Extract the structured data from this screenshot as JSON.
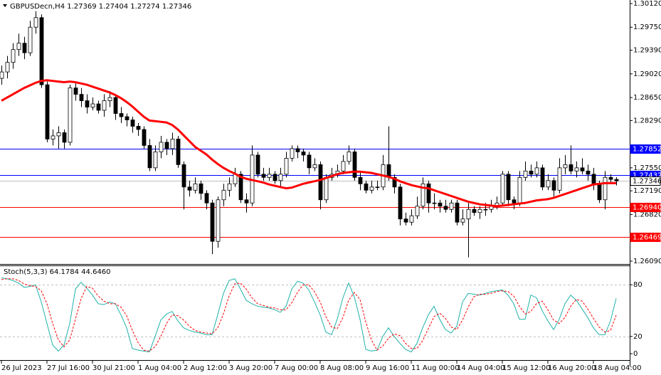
{
  "chart_data": [
    {
      "type": "candlestick",
      "title": "GBPUSDecn,H4  1.27369 1.27404 1.27274 1.27346",
      "categories": [
        "26 Jul 2023",
        null,
        null,
        null,
        null,
        null,
        null,
        null,
        "27 Jul 16:00",
        null,
        null,
        null,
        null,
        null,
        null,
        null,
        "30 Jul 21:00",
        null,
        null,
        null,
        null,
        null,
        null,
        null,
        "1 Aug 04:00",
        null,
        null,
        null,
        null,
        null,
        null,
        null,
        "2 Aug 12:00",
        null,
        null,
        null,
        null,
        null,
        null,
        null,
        "3 Aug 20:00",
        null,
        null,
        null,
        null,
        null,
        null,
        null,
        "7 Aug 00:00",
        null,
        null,
        null,
        null,
        null,
        null,
        null,
        "8 Aug 08:00",
        null,
        null,
        null,
        null,
        null,
        null,
        null,
        "9 Aug 16:00",
        null,
        null,
        null,
        null,
        null,
        null,
        null,
        "11 Aug 00:00",
        null,
        null,
        null,
        null,
        null,
        null,
        null,
        "14 Aug 04:00",
        null,
        null,
        null,
        null,
        null,
        null,
        null,
        "15 Aug 12:00",
        null,
        null,
        null,
        null,
        null,
        null,
        null,
        "16 Aug 20:00",
        null,
        null,
        null,
        null,
        null,
        null,
        null,
        "18 Aug 04:00",
        null,
        null,
        null,
        null
      ],
      "open": [
        1.2895,
        1.2905,
        1.292,
        1.294,
        1.295,
        1.2935,
        1.2975,
        1.299,
        1.2885,
        1.28,
        1.2805,
        1.281,
        1.2795,
        1.288,
        1.287,
        1.286,
        1.285,
        1.2855,
        1.2845,
        1.286,
        1.2865,
        1.284,
        1.2835,
        1.283,
        1.282,
        1.2815,
        1.279,
        1.2755,
        1.278,
        1.2795,
        1.2785,
        1.28,
        1.276,
        1.2725,
        1.272,
        1.273,
        1.2715,
        1.27,
        1.264,
        1.2705,
        1.272,
        1.273,
        1.2745,
        1.2705,
        1.27,
        1.2775,
        1.2745,
        1.274,
        1.2745,
        1.2735,
        1.2745,
        1.277,
        1.2785,
        1.278,
        1.2775,
        1.2755,
        1.276,
        1.2705,
        1.274,
        1.2745,
        1.275,
        1.2765,
        1.278,
        1.274,
        1.273,
        1.272,
        1.2725,
        1.2725,
        1.276,
        1.274,
        1.2725,
        1.2675,
        1.267,
        1.268,
        1.2695,
        1.273,
        1.27,
        1.27,
        1.2695,
        1.269,
        1.27,
        1.267,
        1.2675,
        1.269,
        1.2685,
        1.269,
        1.269,
        1.2695,
        1.27,
        1.2745,
        1.2705,
        1.27,
        1.274,
        1.275,
        1.2745,
        1.2755,
        1.2725,
        1.2735,
        1.272,
        1.2755,
        1.276,
        1.275,
        1.2755,
        1.275,
        1.2745,
        1.273,
        1.2705,
        1.274,
        1.27369
      ],
      "high": [
        1.2915,
        1.293,
        1.295,
        1.2965,
        1.296,
        1.2985,
        1.3,
        1.2995,
        1.289,
        1.2815,
        1.282,
        1.2815,
        1.2885,
        1.289,
        1.288,
        1.287,
        1.2865,
        1.286,
        1.287,
        1.2875,
        1.287,
        1.285,
        1.284,
        1.2835,
        1.2825,
        1.282,
        1.28,
        1.279,
        1.2805,
        1.28,
        1.281,
        1.2805,
        1.2765,
        1.2735,
        1.274,
        1.2735,
        1.272,
        1.2705,
        1.271,
        1.273,
        1.274,
        1.2755,
        1.275,
        1.2715,
        1.279,
        1.278,
        1.2755,
        1.2755,
        1.275,
        1.2755,
        1.278,
        1.279,
        1.279,
        1.2785,
        1.278,
        1.277,
        1.2765,
        1.2745,
        1.2755,
        1.276,
        1.2775,
        1.279,
        1.2785,
        1.275,
        1.2735,
        1.2735,
        1.2735,
        1.2775,
        1.282,
        1.2745,
        1.273,
        1.2685,
        1.269,
        1.271,
        1.274,
        1.2735,
        1.2715,
        1.2705,
        1.2705,
        1.2705,
        1.2705,
        1.269,
        1.27,
        1.2695,
        1.2695,
        1.27,
        1.2705,
        1.271,
        1.275,
        1.275,
        1.271,
        1.275,
        1.2765,
        1.276,
        1.2765,
        1.276,
        1.2745,
        1.274,
        1.277,
        1.2775,
        1.279,
        1.2765,
        1.277,
        1.276,
        1.2755,
        1.2735,
        1.275,
        1.2745,
        1.27404
      ],
      "low": [
        1.2885,
        1.2895,
        1.291,
        1.293,
        1.2925,
        1.293,
        1.2965,
        1.288,
        1.2795,
        1.279,
        1.2785,
        1.2785,
        1.279,
        1.286,
        1.285,
        1.284,
        1.2845,
        1.284,
        1.2835,
        1.285,
        1.283,
        1.2825,
        1.282,
        1.281,
        1.2805,
        1.2785,
        1.275,
        1.275,
        1.277,
        1.2775,
        1.2775,
        1.2755,
        1.269,
        1.271,
        1.2715,
        1.2705,
        1.269,
        1.262,
        1.263,
        1.2695,
        1.271,
        1.2725,
        1.27,
        1.2685,
        1.2695,
        1.274,
        1.2735,
        1.2735,
        1.273,
        1.2725,
        1.274,
        1.2765,
        1.277,
        1.2765,
        1.2745,
        1.275,
        1.269,
        1.27,
        1.2735,
        1.274,
        1.2745,
        1.276,
        1.2735,
        1.272,
        1.2715,
        1.2715,
        1.272,
        1.272,
        1.2735,
        1.2715,
        1.2665,
        1.2665,
        1.2665,
        1.2675,
        1.269,
        1.2685,
        1.269,
        1.2685,
        1.2685,
        1.2685,
        1.2665,
        1.2665,
        1.2615,
        1.268,
        1.2675,
        1.268,
        1.2685,
        1.269,
        1.2695,
        1.2695,
        1.269,
        1.2695,
        1.2735,
        1.274,
        1.274,
        1.272,
        1.272,
        1.271,
        1.2715,
        1.2745,
        1.2745,
        1.274,
        1.2745,
        1.2735,
        1.272,
        1.27,
        1.269,
        1.273,
        1.27274
      ],
      "close": [
        1.2905,
        1.292,
        1.294,
        1.295,
        1.2935,
        1.2975,
        1.299,
        1.2885,
        1.28,
        1.2805,
        1.281,
        1.2795,
        1.288,
        1.287,
        1.286,
        1.285,
        1.2855,
        1.2845,
        1.286,
        1.2865,
        1.284,
        1.2835,
        1.283,
        1.282,
        1.2815,
        1.279,
        1.2755,
        1.278,
        1.2795,
        1.2785,
        1.28,
        1.276,
        1.2725,
        1.272,
        1.273,
        1.2715,
        1.27,
        1.264,
        1.2705,
        1.272,
        1.273,
        1.2745,
        1.2705,
        1.27,
        1.2775,
        1.2745,
        1.274,
        1.2745,
        1.2735,
        1.2745,
        1.277,
        1.2785,
        1.278,
        1.2775,
        1.2755,
        1.276,
        1.2705,
        1.274,
        1.2745,
        1.275,
        1.2765,
        1.278,
        1.274,
        1.273,
        1.272,
        1.2725,
        1.2725,
        1.276,
        1.274,
        1.2725,
        1.2675,
        1.267,
        1.268,
        1.2695,
        1.273,
        1.27,
        1.27,
        1.2695,
        1.269,
        1.27,
        1.267,
        1.2675,
        1.269,
        1.2685,
        1.269,
        1.269,
        1.2695,
        1.27,
        1.2745,
        1.2705,
        1.27,
        1.274,
        1.275,
        1.2745,
        1.2755,
        1.2725,
        1.2735,
        1.272,
        1.2755,
        1.276,
        1.275,
        1.2755,
        1.275,
        1.2745,
        1.273,
        1.2705,
        1.274,
        1.27369,
        1.27346
      ],
      "up_color": "#ffffff",
      "down_color": "#000000",
      "outline_color": "#000000",
      "moving_average": {
        "color": "#ff0000",
        "values": [
          1.286,
          1.2865,
          1.287,
          1.2875,
          1.288,
          1.2884,
          1.2888,
          1.2891,
          1.2892,
          1.2891,
          1.289,
          1.2889,
          1.289,
          1.2889,
          1.2887,
          1.2885,
          1.2882,
          1.2879,
          1.2876,
          1.2873,
          1.2869,
          1.2864,
          1.2858,
          1.2851,
          1.2843,
          1.2835,
          1.2829,
          1.2828,
          1.2827,
          1.2826,
          1.2822,
          1.2815,
          1.2806,
          1.2797,
          1.2788,
          1.2782,
          1.2776,
          1.2768,
          1.2761,
          1.2755,
          1.275,
          1.2746,
          1.2741,
          1.2738,
          1.2736,
          1.2734,
          1.2732,
          1.2729,
          1.2727,
          1.2725,
          1.2723,
          1.2724,
          1.2727,
          1.273,
          1.2732,
          1.2734,
          1.2736,
          1.2739,
          1.2742,
          1.2745,
          1.2747,
          1.2748,
          1.2749,
          1.2749,
          1.2748,
          1.2747,
          1.2745,
          1.2743,
          1.2741,
          1.2738,
          1.2734,
          1.2731,
          1.2728,
          1.2726,
          1.2724,
          1.2723,
          1.272,
          1.2717,
          1.2714,
          1.2711,
          1.2708,
          1.2705,
          1.2702,
          1.27,
          1.2698,
          1.2697,
          1.2696,
          1.2695,
          1.2696,
          1.2697,
          1.2698,
          1.2699,
          1.27,
          1.2702,
          1.2704,
          1.2705,
          1.2706,
          1.2708,
          1.2711,
          1.2714,
          1.2717,
          1.272,
          1.2723,
          1.2726,
          1.2729,
          1.273,
          1.2731,
          1.2731,
          1.2731
        ]
      },
      "levels": [
        {
          "value": 1.27852,
          "label": "1.27852",
          "color": "#0000ff"
        },
        {
          "value": 1.27432,
          "label": "1.27432",
          "color": "#0000ff"
        },
        {
          "value": 1.27346,
          "label": "1.27346",
          "color": "#c0c0c0"
        },
        {
          "value": 1.2694,
          "label": "1.26940",
          "color": "#ff0000"
        },
        {
          "value": 1.26469,
          "label": "1.26469",
          "color": "#ff0000"
        }
      ],
      "ylim": [
        1.2609,
        1.3012
      ],
      "yticks": [
        {
          "value": 1.3012,
          "label": "1.30120"
        },
        {
          "value": 1.2975,
          "label": "1.29750"
        },
        {
          "value": 1.2939,
          "label": "1.29390"
        },
        {
          "value": 1.2902,
          "label": "1.29020"
        },
        {
          "value": 1.2865,
          "label": "1.28650"
        },
        {
          "value": 1.2829,
          "label": "1.28290"
        },
        {
          "value": 1.2755,
          "label": "1.27550"
        },
        {
          "value": 1.2719,
          "label": "1.27190"
        },
        {
          "value": 1.2682,
          "label": "1.26820"
        },
        {
          "value": 1.2609,
          "label": "1.26090"
        }
      ]
    },
    {
      "type": "line",
      "title": "Stoch(5,3,3) 64.1784 44.6460",
      "series": [
        {
          "color": "#20b2aa",
          "dashed": false,
          "values": [
            88,
            87,
            85,
            82,
            77,
            78,
            80,
            60,
            35,
            10,
            3,
            10,
            35,
            75,
            83,
            76,
            68,
            58,
            57,
            60,
            58,
            45,
            30,
            6,
            4,
            3,
            2,
            20,
            39,
            46,
            49,
            38,
            30,
            27,
            25,
            24,
            22,
            22,
            45,
            70,
            85,
            87,
            75,
            62,
            58,
            55,
            54,
            53,
            51,
            48,
            55,
            75,
            84,
            82,
            74,
            60,
            45,
            25,
            22,
            40,
            65,
            82,
            66,
            40,
            5,
            3,
            4,
            20,
            30,
            20,
            12,
            5,
            2,
            12,
            30,
            45,
            55,
            40,
            28,
            24,
            32,
            60,
            70,
            69,
            68,
            70,
            72,
            73,
            74,
            68,
            58,
            40,
            40,
            68,
            65,
            50,
            38,
            28,
            40,
            58,
            68,
            62,
            52,
            42,
            30,
            22,
            22,
            38,
            64.1784
          ]
        },
        {
          "color": "#ff0000",
          "dashed": true,
          "values": [
            86,
            87,
            87,
            85,
            81,
            79,
            78,
            73,
            58,
            35,
            16,
            8,
            16,
            40,
            64,
            78,
            76,
            67,
            61,
            58,
            58,
            54,
            44,
            27,
            13,
            4,
            3,
            8,
            20,
            35,
            45,
            44,
            39,
            32,
            27,
            25,
            24,
            23,
            30,
            46,
            67,
            81,
            82,
            75,
            65,
            58,
            56,
            54,
            53,
            51,
            51,
            59,
            71,
            80,
            80,
            72,
            60,
            43,
            31,
            29,
            42,
            62,
            71,
            63,
            37,
            16,
            4,
            9,
            18,
            23,
            21,
            12,
            6,
            6,
            15,
            29,
            43,
            47,
            41,
            31,
            28,
            39,
            54,
            66,
            69,
            69,
            70,
            72,
            73,
            72,
            67,
            55,
            46,
            49,
            58,
            61,
            51,
            39,
            35,
            42,
            55,
            63,
            61,
            52,
            41,
            31,
            25,
            27,
            44.646
          ]
        }
      ],
      "levels": [
        80,
        20
      ],
      "ylim": [
        0,
        100
      ],
      "yticks": [
        80,
        20,
        0
      ]
    }
  ]
}
